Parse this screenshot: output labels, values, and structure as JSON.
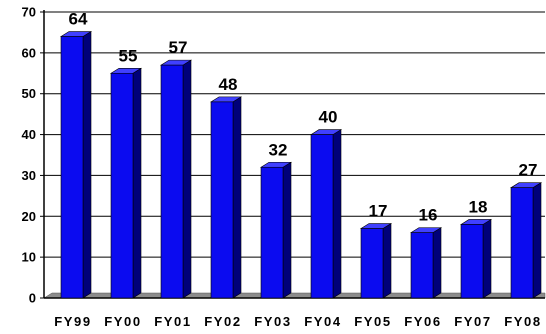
{
  "chart_data": {
    "type": "bar",
    "title": "",
    "xlabel": "",
    "ylabel": "",
    "categories": [
      "FY99",
      "FY00",
      "FY01",
      "FY02",
      "FY03",
      "FY04",
      "FY05",
      "FY06",
      "FY07",
      "FY08"
    ],
    "values": [
      64,
      55,
      57,
      48,
      32,
      40,
      17,
      16,
      18,
      27
    ],
    "ylim": [
      0,
      70
    ],
    "yticks": [
      0,
      10,
      20,
      30,
      40,
      50,
      60,
      70
    ],
    "grid": true,
    "legend": "none",
    "data_labels": true,
    "style": "3d",
    "colors": {
      "bar_front": "#0b0bf0",
      "bar_side": "#00007a",
      "bar_top": "#4040ff",
      "floor": "#8c8c8c",
      "gridline": "#000000",
      "background": "#ffffff"
    }
  }
}
